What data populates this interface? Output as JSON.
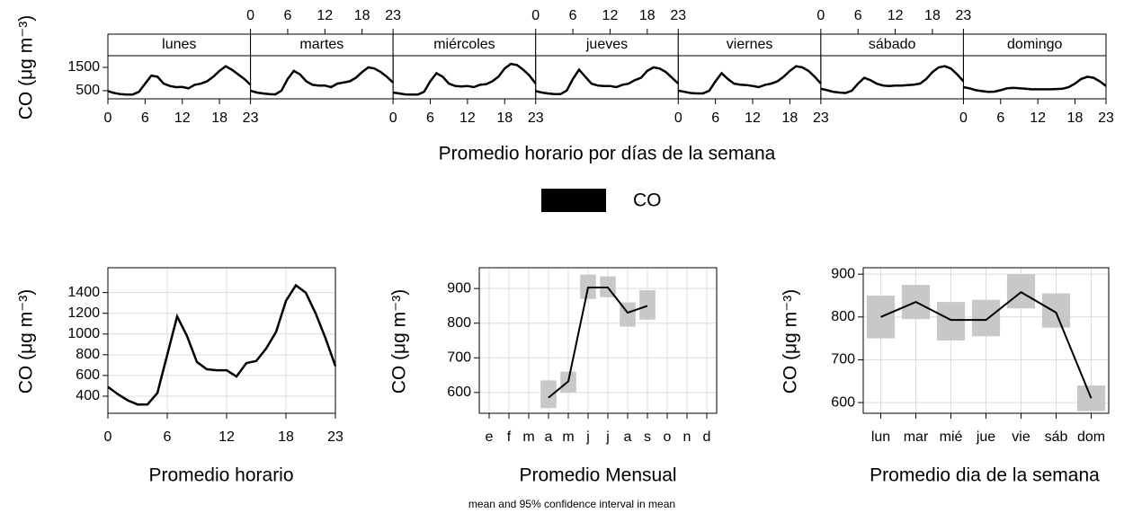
{
  "chart_data": [
    {
      "type": "facet-line",
      "title": "Promedio horario por días de la semana",
      "ylabel": "CO (μg m⁻³)",
      "series_name": "CO",
      "color": "#000000",
      "x": [
        0,
        1,
        2,
        3,
        4,
        5,
        6,
        7,
        8,
        9,
        10,
        11,
        12,
        13,
        14,
        15,
        16,
        17,
        18,
        19,
        20,
        21,
        22,
        23
      ],
      "xlim": [
        0,
        23
      ],
      "xticks": [
        0,
        6,
        12,
        18,
        23
      ],
      "ylim": [
        150,
        2000
      ],
      "yticks": [
        500,
        1500
      ],
      "panels": [
        {
          "name": "lunes",
          "values": [
            480,
            400,
            350,
            330,
            330,
            450,
            800,
            1150,
            1100,
            800,
            700,
            650,
            660,
            600,
            750,
            800,
            900,
            1100,
            1350,
            1550,
            1400,
            1200,
            1000,
            750
          ]
        },
        {
          "name": "martes",
          "values": [
            500,
            420,
            380,
            350,
            340,
            500,
            1000,
            1350,
            1200,
            900,
            750,
            720,
            720,
            650,
            800,
            850,
            900,
            1050,
            1300,
            1500,
            1450,
            1300,
            1100,
            850
          ]
        },
        {
          "name": "miércoles",
          "values": [
            420,
            380,
            340,
            330,
            330,
            450,
            900,
            1250,
            1100,
            800,
            700,
            680,
            700,
            650,
            750,
            780,
            900,
            1100,
            1450,
            1650,
            1600,
            1400,
            1150,
            800
          ]
        },
        {
          "name": "jueves",
          "values": [
            480,
            420,
            380,
            350,
            350,
            500,
            1000,
            1400,
            1100,
            800,
            720,
            700,
            700,
            650,
            750,
            800,
            950,
            1050,
            1350,
            1500,
            1450,
            1300,
            1050,
            800
          ]
        },
        {
          "name": "viernes",
          "values": [
            500,
            450,
            400,
            380,
            380,
            500,
            900,
            1250,
            1000,
            800,
            760,
            740,
            700,
            650,
            750,
            800,
            900,
            1100,
            1350,
            1550,
            1500,
            1350,
            1100,
            800
          ]
        },
        {
          "name": "sábado",
          "values": [
            580,
            520,
            450,
            420,
            400,
            500,
            800,
            1050,
            950,
            800,
            720,
            700,
            720,
            720,
            740,
            760,
            800,
            1000,
            1300,
            1500,
            1550,
            1450,
            1200,
            900
          ]
        },
        {
          "name": "domingo",
          "values": [
            650,
            600,
            520,
            480,
            450,
            460,
            520,
            600,
            620,
            600,
            580,
            560,
            560,
            560,
            560,
            570,
            580,
            650,
            800,
            1000,
            1100,
            1050,
            900,
            700
          ]
        }
      ]
    },
    {
      "type": "line",
      "title": "Promedio horario",
      "ylabel": "CO (μg m⁻³)",
      "color": "#000000",
      "grid": true,
      "x": [
        0,
        1,
        2,
        3,
        4,
        5,
        6,
        7,
        8,
        9,
        10,
        11,
        12,
        13,
        14,
        15,
        16,
        17,
        18,
        19,
        20,
        21,
        22,
        23
      ],
      "values": [
        490,
        420,
        360,
        320,
        320,
        430,
        800,
        1170,
        980,
        730,
        660,
        650,
        650,
        590,
        720,
        740,
        860,
        1020,
        1320,
        1470,
        1400,
        1200,
        960,
        690
      ],
      "xlim": [
        0,
        23
      ],
      "xticks": [
        0,
        6,
        12,
        18,
        23
      ],
      "ylim": [
        235,
        1640
      ],
      "yticks": [
        400,
        600,
        800,
        1000,
        1200,
        1400
      ]
    },
    {
      "type": "category-line",
      "title": "Promedio Mensual",
      "ylabel": "CO (μg m⁻³)",
      "color": "#000000",
      "ci_color": "#c8c8c8",
      "grid": true,
      "categories": [
        "e",
        "f",
        "m",
        "a",
        "m",
        "j",
        "j",
        "a",
        "s",
        "o",
        "n",
        "d"
      ],
      "values": [
        null,
        null,
        null,
        585,
        632,
        903,
        903,
        830,
        850,
        null,
        null,
        null
      ],
      "lower": [
        null,
        null,
        null,
        555,
        600,
        870,
        875,
        790,
        810,
        null,
        null,
        null
      ],
      "upper": [
        null,
        null,
        null,
        635,
        660,
        940,
        935,
        860,
        895,
        null,
        null,
        null
      ],
      "ylim": [
        540,
        960
      ],
      "yticks": [
        600,
        700,
        800,
        900
      ]
    },
    {
      "type": "category-line",
      "title": "Promedio dia de la semana",
      "ylabel": "CO (μg m⁻³)",
      "color": "#000000",
      "ci_color": "#c8c8c8",
      "grid": true,
      "categories": [
        "lun",
        "mar",
        "mié",
        "jue",
        "vie",
        "sáb",
        "dom"
      ],
      "values": [
        800,
        835,
        793,
        793,
        858,
        810,
        610
      ],
      "lower": [
        750,
        795,
        745,
        755,
        820,
        775,
        580
      ],
      "upper": [
        850,
        875,
        835,
        840,
        900,
        855,
        640
      ],
      "ylim": [
        575,
        915
      ],
      "yticks": [
        600,
        700,
        800,
        900
      ]
    }
  ],
  "footer": "mean and 95% confidence interval in mean"
}
